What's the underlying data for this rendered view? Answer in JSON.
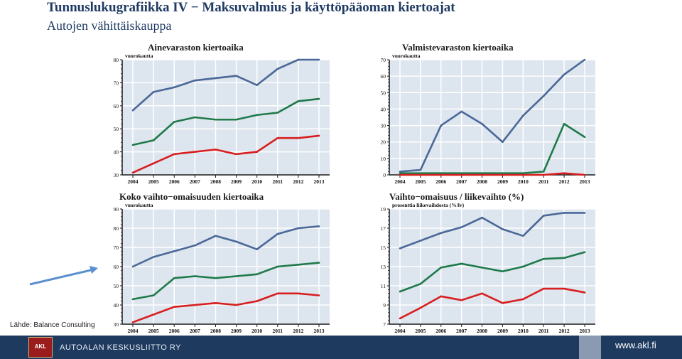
{
  "header": {
    "title": "Tunnuslukugrafiikka IV − Maksuvalmius ja käyttöpääoman kiertoajat",
    "subtitle": "Autojen vähittäiskauppa"
  },
  "source_note": "Lähde: Balance Consulting",
  "footer": {
    "organization": "AUTOALAN KESKUSLIITTO RY",
    "logo_text": "AKL",
    "url": "www.akl.fi"
  },
  "colors": {
    "series_1": "#4a6898",
    "series_2": "#1f7a4a",
    "series_3": "#d81e1e",
    "plot_bg": "#dde5ee",
    "grid": "#ffffff",
    "axis": "#1a1a1a"
  },
  "chart_data": [
    {
      "type": "line",
      "title": "Ainevaraston kiertoaika",
      "ylabel": "vuorokautta",
      "categories": [
        "2004",
        "2005",
        "2006",
        "2007",
        "2008",
        "2009",
        "2010",
        "2011",
        "2012",
        "2013"
      ],
      "ylim": [
        30,
        80
      ],
      "yticks": [
        30,
        40,
        50,
        60,
        70,
        80
      ],
      "grid": true,
      "series": [
        {
          "values": [
            58,
            66,
            68,
            71,
            72,
            73,
            69,
            76,
            80,
            80
          ]
        },
        {
          "values": [
            43,
            45,
            53,
            55,
            54,
            54,
            56,
            57,
            62,
            63
          ]
        },
        {
          "values": [
            31,
            35,
            39,
            40,
            41,
            39,
            40,
            46,
            46,
            47
          ]
        }
      ]
    },
    {
      "type": "line",
      "title": "Valmistevaraston kiertoaika",
      "ylabel": "vuorokautta",
      "categories": [
        "2004",
        "2005",
        "2006",
        "2007",
        "2008",
        "2009",
        "2010",
        "2011",
        "2012",
        "2013"
      ],
      "ylim": [
        0,
        70
      ],
      "yticks": [
        0,
        10,
        20,
        30,
        40,
        50,
        60,
        70
      ],
      "grid": true,
      "series": [
        {
          "values": [
            2,
            3,
            30,
            38.5,
            31,
            20,
            36,
            48,
            61,
            70
          ]
        },
        {
          "values": [
            1,
            1,
            1,
            1,
            1,
            1,
            1,
            2,
            31,
            23
          ]
        },
        {
          "values": [
            0,
            0,
            0,
            0,
            0,
            0,
            0,
            0,
            1,
            0
          ]
        }
      ]
    },
    {
      "type": "line",
      "title": "Koko vaihto−omaisuuden kiertoaika",
      "ylabel": "vuorokautta",
      "categories": [
        "2004",
        "2005",
        "2006",
        "2007",
        "2008",
        "2009",
        "2010",
        "2011",
        "2012",
        "2013"
      ],
      "ylim": [
        30,
        90
      ],
      "yticks": [
        30,
        40,
        50,
        60,
        70,
        80,
        90
      ],
      "grid": true,
      "series": [
        {
          "values": [
            60,
            65,
            68,
            71,
            76,
            73,
            69,
            77,
            80,
            81
          ]
        },
        {
          "values": [
            43,
            45,
            54,
            55,
            54,
            55,
            56,
            60,
            61,
            62
          ]
        },
        {
          "values": [
            31,
            35,
            39,
            40,
            41,
            40,
            42,
            46,
            46,
            45
          ]
        }
      ]
    },
    {
      "type": "line",
      "title": "Vaihto−omaisuus / liikevaihto (%)",
      "ylabel": "prosenttia liikevaihdosta (%/lv)",
      "categories": [
        "2004",
        "2005",
        "2006",
        "2007",
        "2008",
        "2009",
        "2010",
        "2011",
        "2012",
        "2013"
      ],
      "ylim": [
        7,
        19
      ],
      "yticks": [
        7,
        9,
        11,
        13,
        15,
        17,
        19
      ],
      "grid": true,
      "series": [
        {
          "values": [
            14.9,
            15.7,
            16.5,
            17.1,
            18.1,
            16.9,
            16.2,
            18.3,
            18.6,
            18.6
          ]
        },
        {
          "values": [
            10.4,
            11.2,
            12.9,
            13.3,
            12.9,
            12.5,
            13.0,
            13.8,
            13.9,
            14.5
          ]
        },
        {
          "values": [
            7.6,
            8.7,
            9.9,
            9.5,
            10.2,
            9.2,
            9.6,
            10.7,
            10.7,
            10.3
          ]
        }
      ]
    }
  ]
}
